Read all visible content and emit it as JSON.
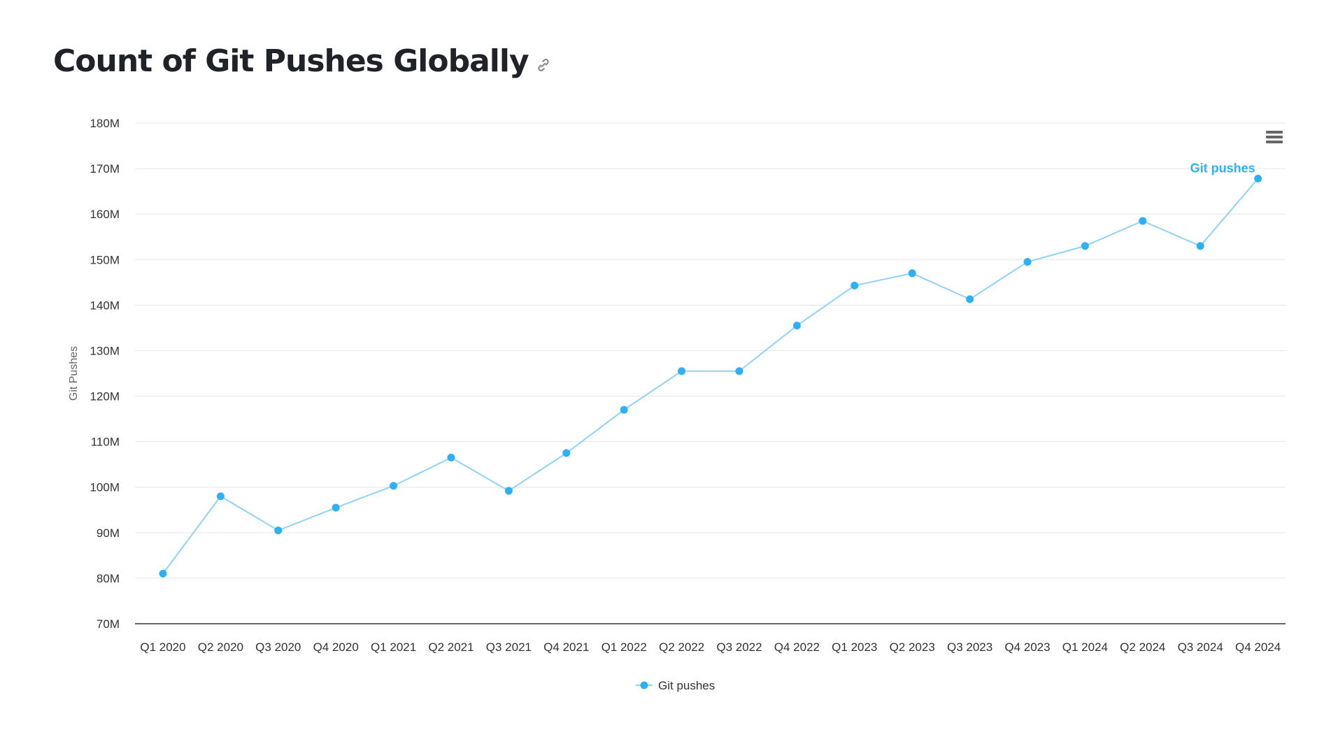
{
  "header": {
    "title": "Count of Git Pushes Globally",
    "link_icon": "link-icon"
  },
  "toolbar": {
    "menu_icon": "hamburger-menu-icon"
  },
  "colors": {
    "series": "#2eb0f5",
    "line": "#8fd3fa",
    "grid": "#e6e6e6",
    "axis": "#333333"
  },
  "chart_data": {
    "type": "line",
    "categories": [
      "Q1 2020",
      "Q2 2020",
      "Q3 2020",
      "Q4 2020",
      "Q1 2021",
      "Q2 2021",
      "Q3 2021",
      "Q4 2021",
      "Q1 2022",
      "Q2 2022",
      "Q3 2022",
      "Q4 2022",
      "Q1 2023",
      "Q2 2023",
      "Q3 2023",
      "Q4 2023",
      "Q1 2024",
      "Q2 2024",
      "Q3 2024",
      "Q4 2024"
    ],
    "series": [
      {
        "name": "Git pushes",
        "values": [
          81,
          98,
          90.5,
          95.5,
          100.3,
          106.5,
          99.2,
          107.5,
          117,
          125.5,
          125.5,
          135.5,
          144.3,
          147,
          141.3,
          149.5,
          153,
          158.5,
          153,
          167.8
        ]
      }
    ],
    "value_unit": "M",
    "ylabel": "Git Pushes",
    "xlabel": "",
    "ylim": [
      70,
      180
    ],
    "y_ticks": [
      70,
      80,
      90,
      100,
      110,
      120,
      130,
      140,
      150,
      160,
      170,
      180
    ],
    "y_tick_labels": [
      "70M",
      "80M",
      "90M",
      "100M",
      "110M",
      "120M",
      "130M",
      "140M",
      "150M",
      "160M",
      "170M",
      "180M"
    ],
    "grid": true,
    "legend_position": "bottom-center",
    "series_end_label": "Git pushes"
  }
}
